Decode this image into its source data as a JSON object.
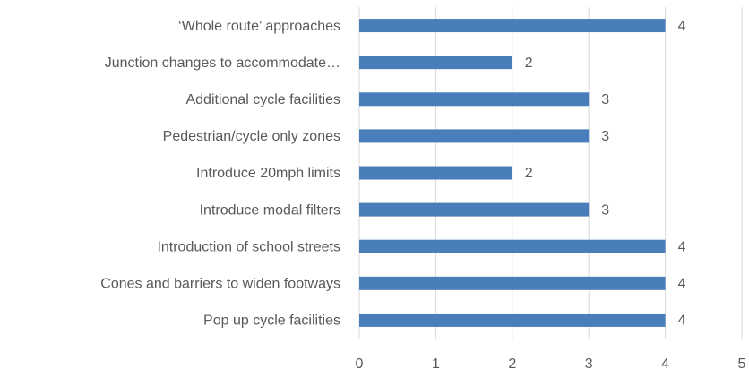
{
  "chart_data": {
    "type": "barh",
    "categories": [
      "‘Whole route’ approaches",
      "Junction changes to accommodate…",
      "Additional cycle facilities",
      "Pedestrian/cycle only zones",
      "Introduce 20mph limits",
      "Introduce modal filters",
      "Introduction of school streets",
      "Cones and barriers to widen footways",
      "Pop up cycle facilities"
    ],
    "values": [
      4,
      2,
      3,
      3,
      2,
      3,
      4,
      4,
      4
    ],
    "color": "#4a7ebb",
    "xlim": [
      0,
      5
    ],
    "xticks": [
      0,
      1,
      2,
      3,
      4,
      5
    ],
    "grid": true
  }
}
